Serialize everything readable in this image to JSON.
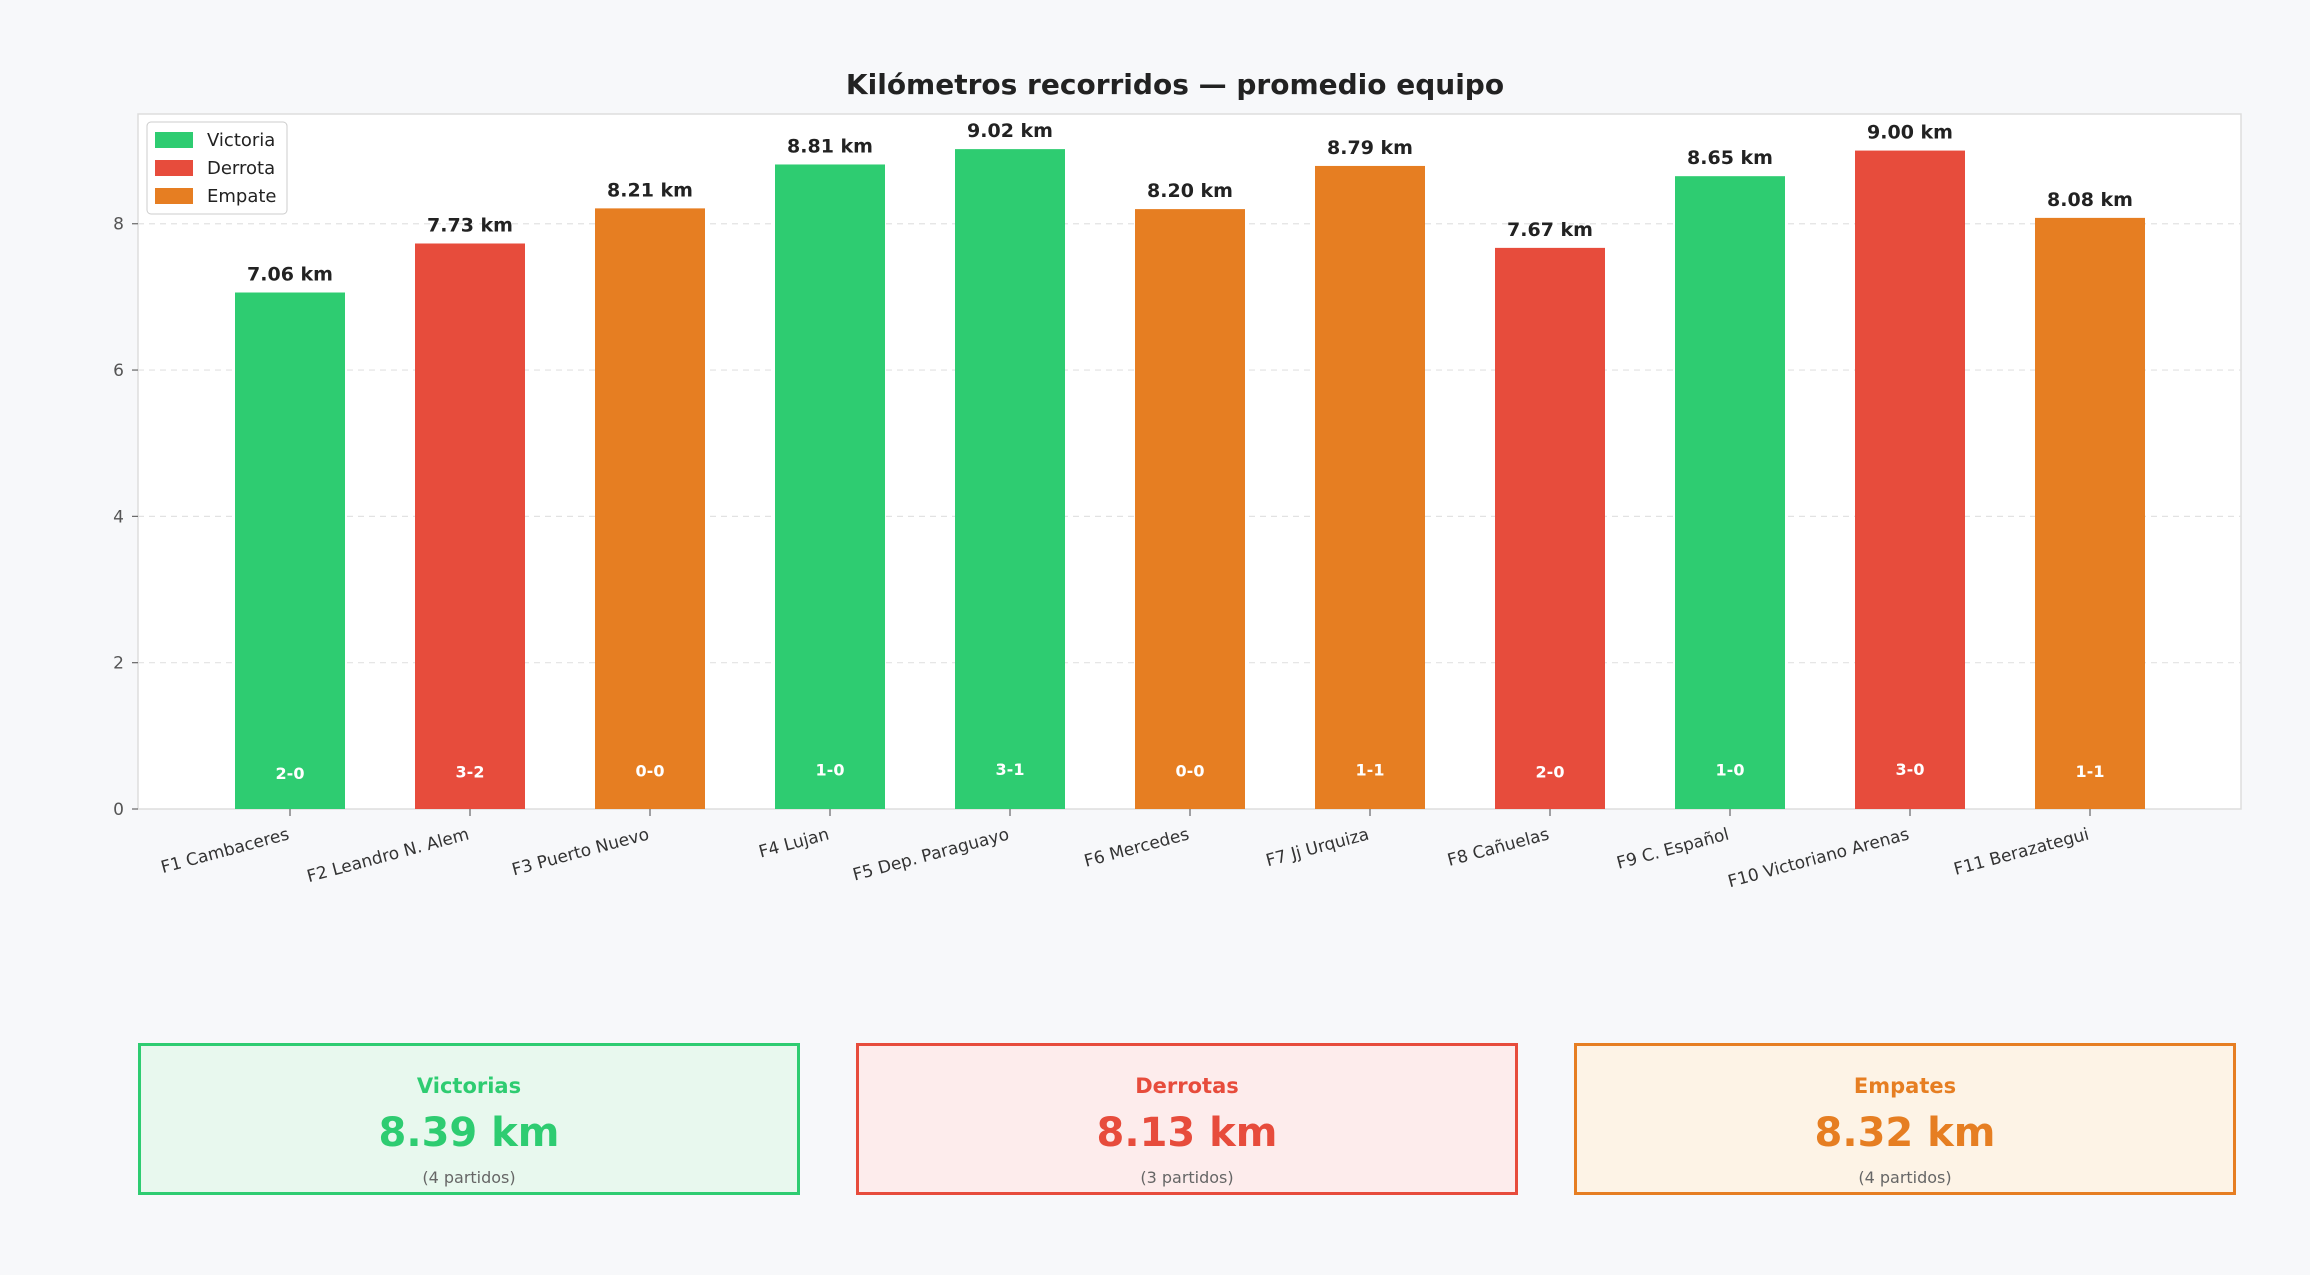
{
  "chart_data": {
    "type": "bar",
    "title": "Kilómetros recorridos — promedio equipo",
    "xlabel": "",
    "ylabel": "",
    "ylim": [
      0,
      9.5
    ],
    "yticks": [
      0,
      2,
      4,
      6,
      8
    ],
    "grid": true,
    "legend_position": "top-left",
    "legend": [
      {
        "label": "Victoria",
        "color": "#2ecc71"
      },
      {
        "label": "Derrota",
        "color": "#e74c3c"
      },
      {
        "label": "Empate",
        "color": "#e67e22"
      }
    ],
    "categories": [
      "F1 Cambaceres",
      "F2 Leandro N. Alem",
      "F3 Puerto Nuevo",
      "F4 Lujan",
      "F5 Dep. Paraguayo",
      "F6 Mercedes",
      "F7 Jj Urquiza",
      "F8 Cañuelas",
      "F9 C. Español",
      "F10 Victoriano Arenas",
      "F11 Berazategui"
    ],
    "values": [
      7.06,
      7.73,
      8.21,
      8.81,
      9.02,
      8.2,
      8.79,
      7.67,
      8.65,
      9.0,
      8.08
    ],
    "value_labels": [
      "7.06 km",
      "7.73 km",
      "8.21 km",
      "8.81 km",
      "9.02 km",
      "8.20 km",
      "8.79 km",
      "7.67 km",
      "8.65 km",
      "9.00 km",
      "8.08 km"
    ],
    "results": [
      "Victoria",
      "Derrota",
      "Empate",
      "Victoria",
      "Victoria",
      "Empate",
      "Empate",
      "Derrota",
      "Victoria",
      "Derrota",
      "Empate"
    ],
    "scores": [
      "2-0",
      "3-2",
      "0-0",
      "1-0",
      "3-1",
      "0-0",
      "1-1",
      "2-0",
      "1-0",
      "3-0",
      "1-1"
    ]
  },
  "summary": {
    "victorias": {
      "title": "Victorias",
      "value": "8.39 km",
      "sub": "(4 partidos)",
      "color": "#2ecc71",
      "bg": "#e8f8ee"
    },
    "derrotas": {
      "title": "Derrotas",
      "value": "8.13 km",
      "sub": "(3 partidos)",
      "color": "#e74c3c",
      "bg": "#fdecec"
    },
    "empates": {
      "title": "Empates",
      "value": "8.32 km",
      "sub": "(4 partidos)",
      "color": "#e67e22",
      "bg": "#fdf3e6"
    }
  }
}
